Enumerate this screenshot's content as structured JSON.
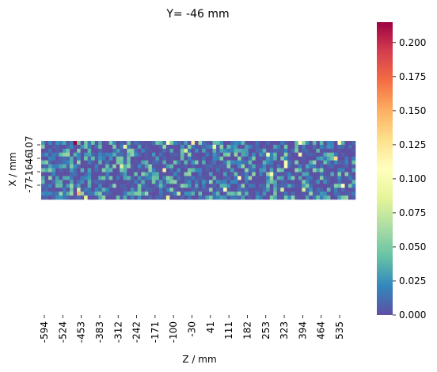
{
  "chart_data": {
    "type": "heatmap",
    "title": "Y= -46 mm",
    "xlabel": "Z / mm",
    "ylabel": "X / mm",
    "x_ticks": [
      "-594",
      "-524",
      "-453",
      "-383",
      "-312",
      "-242",
      "-171",
      "-100",
      "-30",
      "41",
      "111",
      "182",
      "253",
      "323",
      "394",
      "464",
      "535"
    ],
    "y_ticks": [
      "107",
      "46",
      "-16",
      "-77"
    ],
    "colorbar": {
      "colormap": "Spectral_r",
      "range": [
        0.0,
        0.215
      ],
      "ticks": [
        "0.000",
        "0.025",
        "0.050",
        "0.075",
        "0.100",
        "0.125",
        "0.150",
        "0.175",
        "0.200"
      ]
    },
    "grid": {
      "columns": 88,
      "rows": 15,
      "typical_range": [
        0.0,
        0.06
      ],
      "notable_cells": [
        {
          "z": -594,
          "x": 107,
          "value": 0.03
        },
        {
          "z": -475,
          "x": 107,
          "value": 0.215
        },
        {
          "z": -453,
          "x": -77,
          "value": 0.15
        },
        {
          "z": -115,
          "x": 107,
          "value": 0.11
        },
        {
          "z": -30,
          "x": 107,
          "value": 0.12
        },
        {
          "z": 380,
          "x": 107,
          "value": 0.11
        },
        {
          "z": 520,
          "x": 46,
          "value": 0.13
        }
      ]
    }
  }
}
